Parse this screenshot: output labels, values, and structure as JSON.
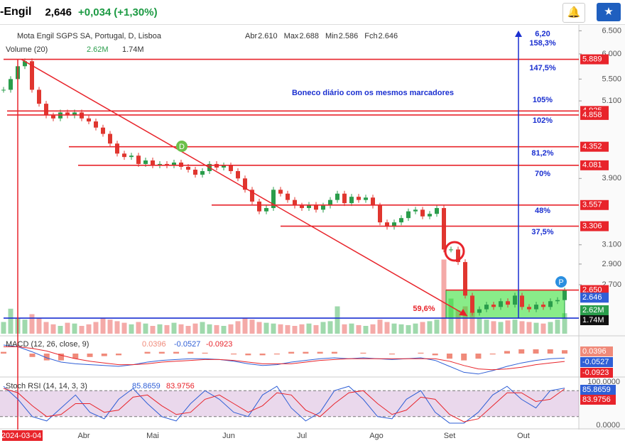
{
  "header": {
    "ticker": "-Engil",
    "price": "2,646",
    "change": "+0,034",
    "change_pct": "(+1,30%)"
  },
  "chart_data": [
    {
      "type": "candlestick",
      "title": "Mota Engil SGPS SA, Portugal, D, Lisboa",
      "ohlc_legend": [
        [
          "Abr",
          "2.610"
        ],
        [
          "Max",
          "2.688"
        ],
        [
          "Min",
          "2.586"
        ],
        [
          "Fch",
          "2.646"
        ]
      ],
      "values": [
        5.3,
        5.5,
        5.75,
        5.85,
        5.3,
        5.05,
        4.85,
        4.8,
        4.9,
        4.85,
        4.9,
        4.8,
        4.75,
        4.65,
        4.55,
        4.4,
        4.25,
        4.2,
        4.22,
        4.1,
        4.15,
        4.08,
        4.1,
        4.08,
        4.12,
        4.06,
        4.02,
        3.95,
        4.0,
        4.1,
        4.05,
        4.08,
        4.0,
        3.9,
        3.75,
        3.6,
        3.48,
        3.52,
        3.75,
        3.7,
        3.62,
        3.55,
        3.52,
        3.56,
        3.5,
        3.55,
        3.62,
        3.7,
        3.58,
        3.66,
        3.62,
        3.65,
        3.55,
        3.35,
        3.3,
        3.35,
        3.4,
        3.48,
        3.5,
        3.42,
        3.45,
        3.52,
        3.05,
        3.05,
        2.92,
        2.6,
        2.45,
        2.48,
        2.52,
        2.5,
        2.55,
        2.52,
        2.6,
        2.5,
        2.48,
        2.52,
        2.5,
        2.55,
        2.56,
        2.646
      ],
      "up_color": "#2a9d4b",
      "down_color": "#e0362f",
      "log_scale": true,
      "ylim": [
        2.33,
        6.75
      ],
      "yticks": [
        {
          "value": 6.5,
          "label": "6.500"
        },
        {
          "value": 6.0,
          "label": "6.000"
        },
        {
          "value": 5.5,
          "label": "5.500"
        },
        {
          "value": 5.1,
          "label": "5.100"
        },
        {
          "value": 3.9,
          "label": "3.900"
        },
        {
          "value": 3.1,
          "label": "3.100"
        },
        {
          "value": 2.9,
          "label": "2.900"
        },
        {
          "value": 2.7,
          "label": "2.700"
        }
      ],
      "levels": [
        {
          "value": 5.889,
          "color": "#e8242b"
        },
        {
          "value": 4.925,
          "color": "#e8242b"
        },
        {
          "value": 4.858,
          "color": "#e8242b"
        },
        {
          "value": 4.352,
          "color": "#e8242b"
        },
        {
          "value": 4.081,
          "color": "#e8242b"
        },
        {
          "value": 3.557,
          "color": "#e8242b"
        },
        {
          "value": 3.306,
          "color": "#e8242b"
        },
        {
          "value": 2.65,
          "label": "2.650",
          "color": "#e8242b"
        },
        {
          "value": 2.405,
          "color": "#1a2fd0"
        }
      ],
      "targets": [
        "6,20",
        "158,3%",
        "147,5%",
        "105%",
        "102%",
        "81,2%",
        "70%",
        "48%",
        "37,5%"
      ],
      "note": "Boneco diário com os mesmos marcadores",
      "drop_label": "59,6%",
      "markers": [
        "D",
        "P"
      ],
      "xticks": [
        "2024-03-04",
        "Abr",
        "Mai",
        "Jun",
        "Jul",
        "Ago",
        "Set",
        "Out"
      ]
    },
    {
      "type": "bar",
      "title": "Volume (20)",
      "values": [
        1.5,
        3.2,
        2.0,
        1.8,
        2.5,
        2.0,
        1.5,
        1.2,
        1.0,
        1.4,
        1.3,
        1.0,
        1.2,
        1.5,
        2.0,
        1.8,
        1.6,
        1.4,
        1.2,
        1.5,
        1.3,
        1.0,
        1.2,
        1.1,
        1.4,
        1.2,
        1.0,
        1.3,
        1.5,
        1.2,
        1.1,
        1.0,
        1.2,
        1.6,
        2.0,
        1.8,
        1.5,
        1.4,
        1.3,
        1.2,
        1.1,
        1.0,
        1.2,
        1.3,
        1.1,
        1.5,
        1.6,
        3.5,
        1.2,
        1.3,
        1.1,
        1.0,
        1.2,
        1.8,
        1.5,
        1.3,
        1.2,
        1.1,
        1.3,
        1.5,
        1.6,
        1.8,
        9.5,
        4.5,
        3.0,
        3.5,
        2.8,
        2.0,
        1.8,
        1.6,
        1.5,
        1.7,
        1.8,
        1.6,
        1.5,
        1.4,
        1.3,
        1.5,
        1.8,
        2.62
      ],
      "last": {
        "value": 2.62,
        "label": "2.62M"
      },
      "ma": {
        "value": 1.74,
        "label": "1.74M"
      },
      "ylim": [
        0,
        10
      ]
    },
    {
      "type": "line",
      "title": "MACD (12, 26, close, 9)",
      "ylim": [
        -0.25,
        0.15
      ],
      "histogram": {
        "color": "#f08a7a",
        "values": [
          0.02,
          0,
          -0.04,
          -0.08,
          -0.08,
          -0.06,
          -0.04,
          -0.03,
          -0.02,
          0,
          0.02,
          0.02,
          0.02,
          0.02,
          0.01,
          0,
          -0.01,
          -0.02,
          -0.02,
          -0.01,
          0.02,
          0.02,
          0.02,
          0.02,
          0,
          0.01,
          0,
          -0.01,
          0,
          0.01,
          -0.02,
          -0.06,
          -0.08,
          -0.06,
          -0.01,
          0.03,
          0.05,
          0.05,
          0.05,
          0.0396
        ]
      },
      "series": [
        {
          "color": "#2f5fd6",
          "values": [
            0.1,
            0.08,
            0.02,
            -0.05,
            -0.1,
            -0.12,
            -0.13,
            -0.14,
            -0.15,
            -0.13,
            -0.1,
            -0.08,
            -0.07,
            -0.06,
            -0.06,
            -0.07,
            -0.09,
            -0.12,
            -0.14,
            -0.13,
            -0.1,
            -0.08,
            -0.06,
            -0.05,
            -0.06,
            -0.05,
            -0.06,
            -0.07,
            -0.06,
            -0.05,
            -0.08,
            -0.15,
            -0.22,
            -0.24,
            -0.2,
            -0.15,
            -0.11,
            -0.08,
            -0.06,
            -0.0527
          ]
        },
        {
          "color": "#e8242b",
          "values": [
            0.08,
            0.08,
            0.06,
            0.03,
            -0.02,
            -0.06,
            -0.09,
            -0.11,
            -0.13,
            -0.13,
            -0.12,
            -0.1,
            -0.09,
            -0.08,
            -0.07,
            -0.07,
            -0.08,
            -0.1,
            -0.12,
            -0.12,
            -0.12,
            -0.1,
            -0.08,
            -0.07,
            -0.06,
            -0.06,
            -0.06,
            -0.06,
            -0.06,
            -0.06,
            -0.06,
            -0.09,
            -0.14,
            -0.18,
            -0.19,
            -0.18,
            -0.16,
            -0.13,
            -0.11,
            -0.0923
          ]
        }
      ]
    },
    {
      "type": "line",
      "title": "Stoch RSI (14, 14, 3, 3)",
      "ylim": [
        0,
        100
      ],
      "bands": [
        20,
        80
      ],
      "yticks": [
        {
          "value": 100,
          "label": "100.0000"
        },
        {
          "value": 0,
          "label": "0.0000"
        }
      ],
      "series": [
        {
          "color": "#2f5fd6",
          "values": [
            90,
            60,
            20,
            10,
            40,
            70,
            30,
            15,
            60,
            85,
            50,
            20,
            10,
            50,
            80,
            60,
            30,
            20,
            70,
            90,
            40,
            10,
            30,
            80,
            90,
            60,
            20,
            15,
            60,
            80,
            30,
            5,
            5,
            30,
            70,
            90,
            60,
            40,
            80,
            85.8659
          ]
        },
        {
          "color": "#e8242b",
          "values": [
            85,
            75,
            45,
            20,
            25,
            50,
            50,
            30,
            35,
            65,
            70,
            45,
            25,
            30,
            60,
            70,
            50,
            30,
            45,
            75,
            70,
            35,
            20,
            50,
            75,
            80,
            50,
            25,
            35,
            65,
            60,
            25,
            8,
            15,
            45,
            75,
            75,
            55,
            60,
            83.9756
          ]
        }
      ]
    }
  ]
}
